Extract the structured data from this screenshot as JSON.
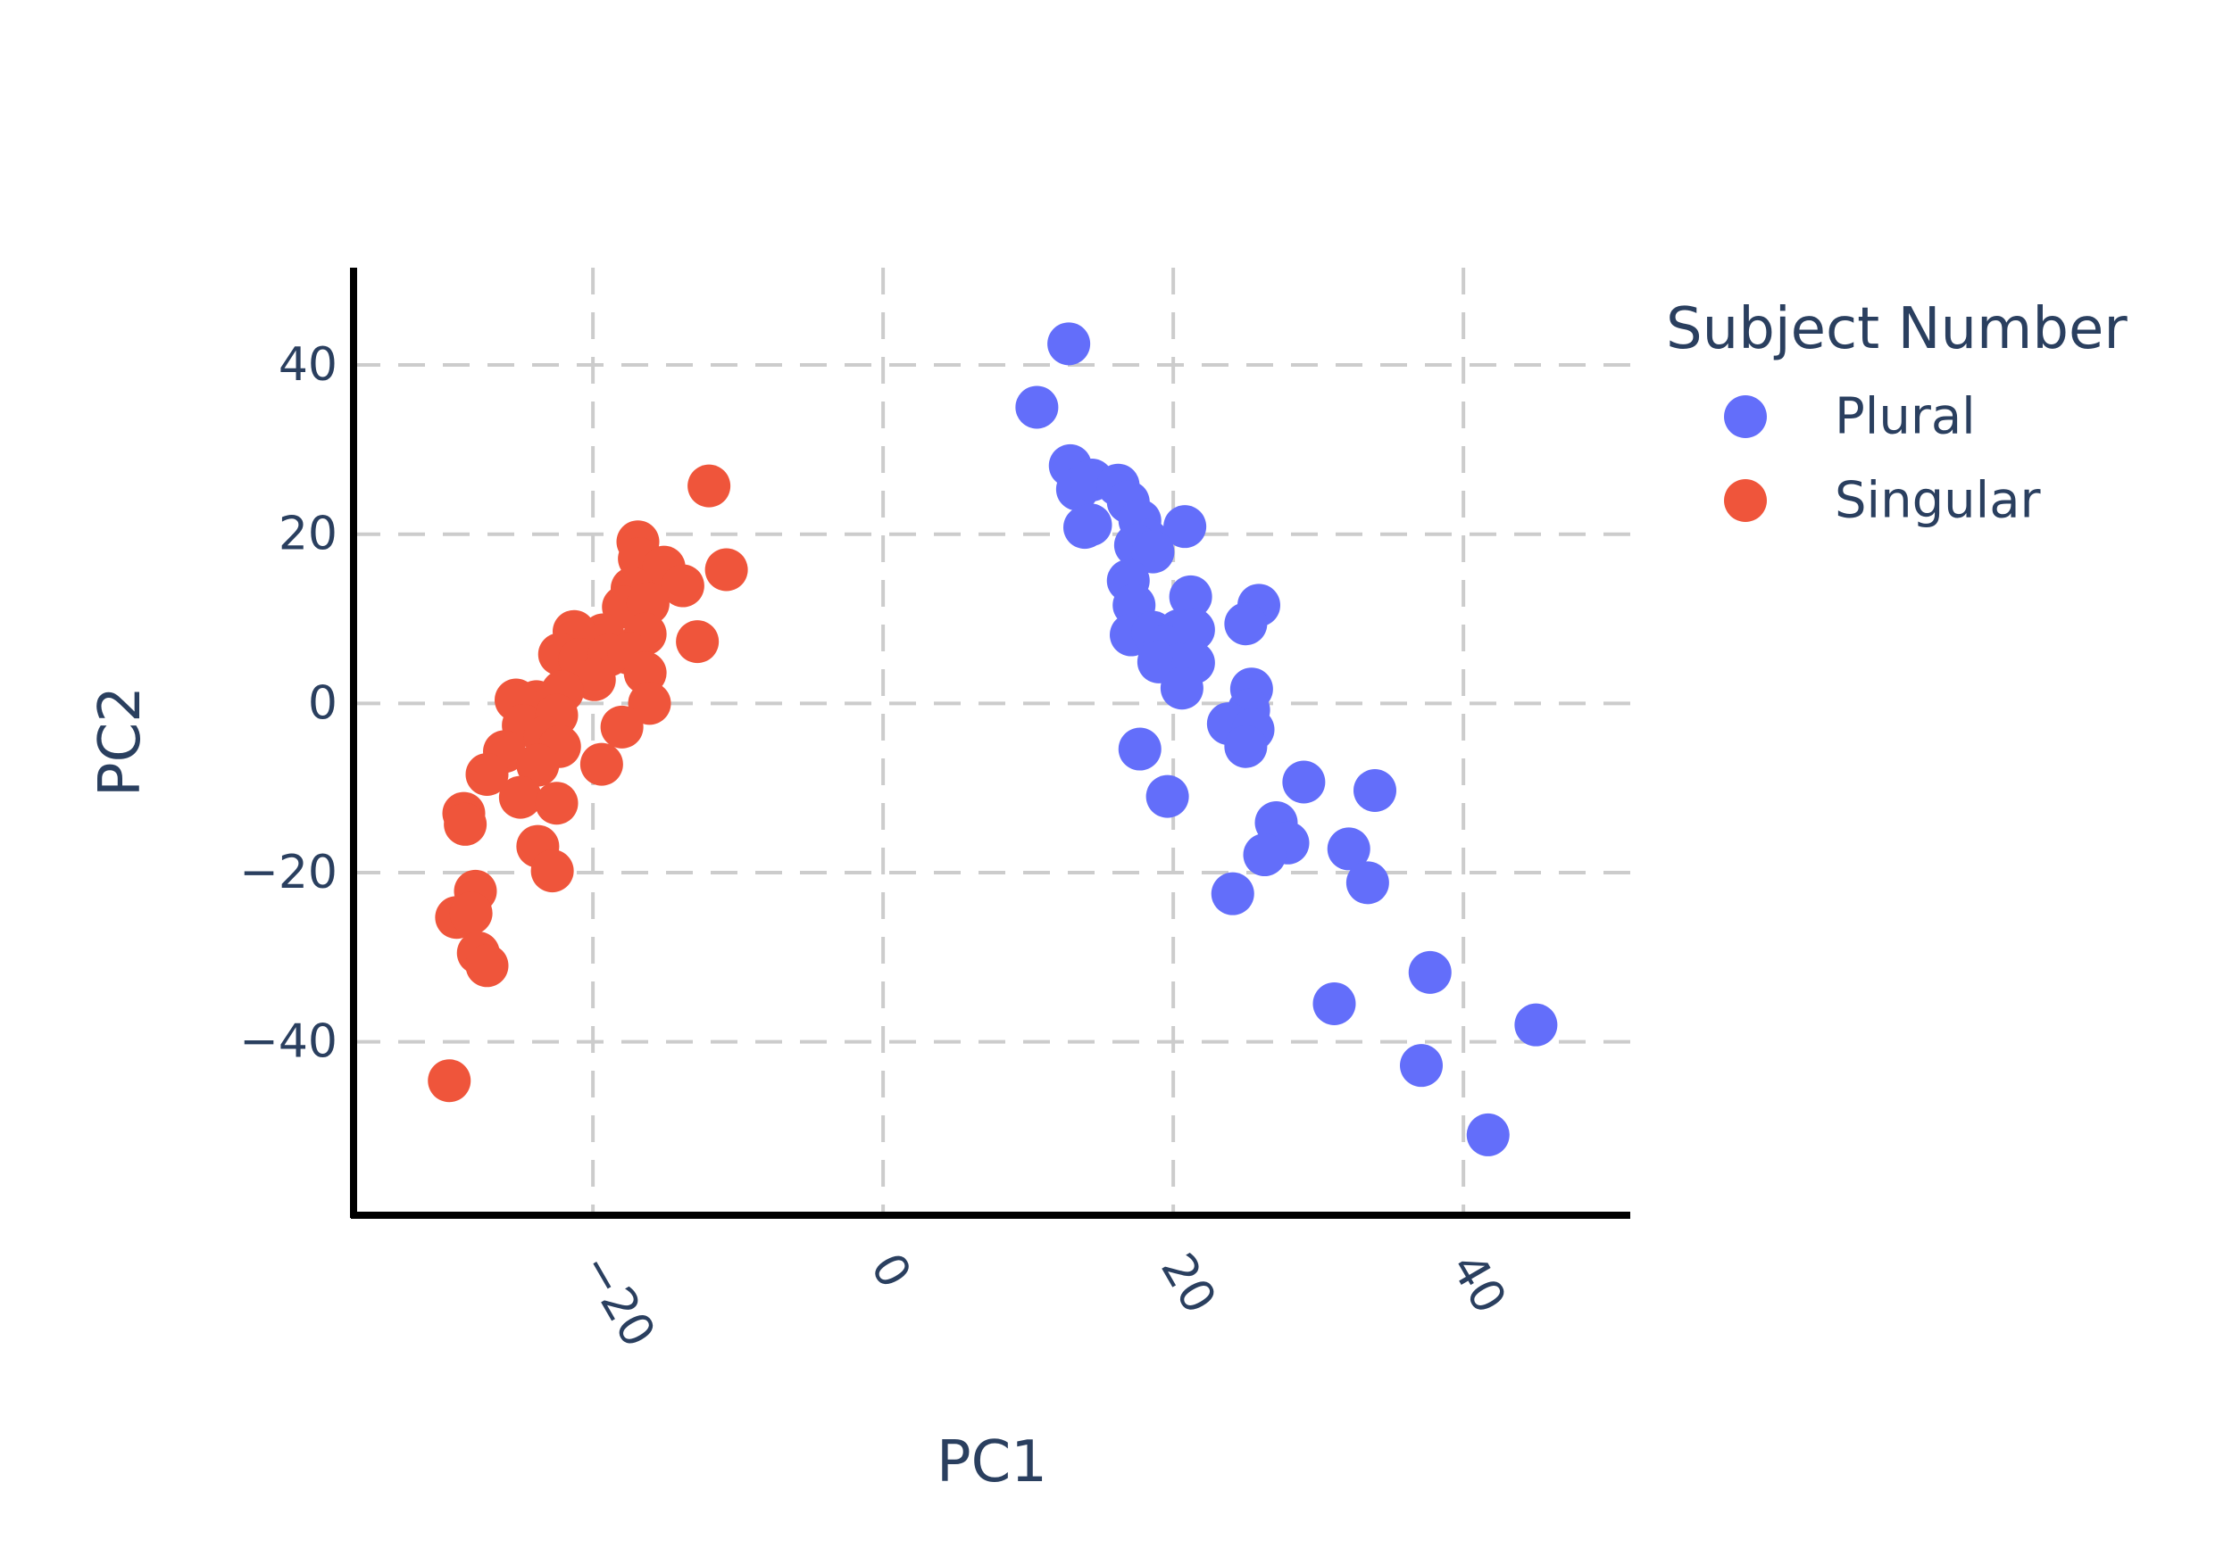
{
  "colors": {
    "plural": "#636efa",
    "singular": "#ef553b",
    "text": "#2a3f5f",
    "grid": "#cccccc",
    "axis": "#000000"
  },
  "chart_data": {
    "type": "scatter",
    "xlabel": "PC1",
    "ylabel": "PC2",
    "xlim": [
      -36.5,
      51.5
    ],
    "ylim": [
      -60.5,
      51.5
    ],
    "xticks": [
      -20,
      0,
      20,
      40
    ],
    "yticks": [
      -40,
      -20,
      0,
      20,
      40
    ],
    "tick_labels_x": [
      "−20",
      "0",
      "20",
      "40"
    ],
    "tick_labels_y": [
      "−40",
      "−20",
      "0",
      "20",
      "40"
    ],
    "grid": true,
    "legend": {
      "title": "Subject Number",
      "position": "top-right"
    },
    "series": [
      {
        "name": "Plural",
        "color": "#636efa",
        "points": [
          [
            12.8,
            42.5
          ],
          [
            10.6,
            35.0
          ],
          [
            12.9,
            28.1
          ],
          [
            13.4,
            25.3
          ],
          [
            14.4,
            26.4
          ],
          [
            16.2,
            25.8
          ],
          [
            16.9,
            23.8
          ],
          [
            13.9,
            20.8
          ],
          [
            14.3,
            21.1
          ],
          [
            17.7,
            21.6
          ],
          [
            18.2,
            19.3
          ],
          [
            20.8,
            20.9
          ],
          [
            17.4,
            18.7
          ],
          [
            18.6,
            17.9
          ],
          [
            16.9,
            14.5
          ],
          [
            21.2,
            12.6
          ],
          [
            25.9,
            11.6
          ],
          [
            25.0,
            9.4
          ],
          [
            17.3,
            11.6
          ],
          [
            17.1,
            8.1
          ],
          [
            18.6,
            8.4
          ],
          [
            20.4,
            8.6
          ],
          [
            21.4,
            8.7
          ],
          [
            19.4,
            6.7
          ],
          [
            19.0,
            4.9
          ],
          [
            20.4,
            4.6
          ],
          [
            21.4,
            4.8
          ],
          [
            20.6,
            1.8
          ],
          [
            25.4,
            1.7
          ],
          [
            25.2,
            -0.8
          ],
          [
            23.8,
            -2.4
          ],
          [
            25.5,
            -3.1
          ],
          [
            25.0,
            -5.1
          ],
          [
            17.7,
            -5.4
          ],
          [
            19.6,
            -11.0
          ],
          [
            29.0,
            -9.3
          ],
          [
            33.9,
            -10.3
          ],
          [
            27.1,
            -14.1
          ],
          [
            27.9,
            -16.5
          ],
          [
            26.3,
            -17.9
          ],
          [
            32.1,
            -17.2
          ],
          [
            33.4,
            -21.2
          ],
          [
            24.1,
            -22.5
          ],
          [
            37.7,
            -31.8
          ],
          [
            31.1,
            -35.5
          ],
          [
            37.1,
            -42.8
          ],
          [
            45.0,
            -38.0
          ],
          [
            41.7,
            -51.0
          ]
        ]
      },
      {
        "name": "Singular",
        "color": "#ef553b",
        "points": [
          [
            -12.0,
            25.7
          ],
          [
            -10.8,
            15.8
          ],
          [
            -16.9,
            19.1
          ],
          [
            -16.8,
            17.1
          ],
          [
            -15.1,
            16.1
          ],
          [
            -13.8,
            13.9
          ],
          [
            -17.3,
            13.6
          ],
          [
            -17.9,
            11.4
          ],
          [
            -16.2,
            11.8
          ],
          [
            -16.4,
            8.2
          ],
          [
            -19.3,
            8.1
          ],
          [
            -21.3,
            8.5
          ],
          [
            -12.8,
            7.3
          ],
          [
            -22.3,
            5.8
          ],
          [
            -20.9,
            5.2
          ],
          [
            -18.9,
            5.7
          ],
          [
            -17.5,
            5.9
          ],
          [
            -16.4,
            3.6
          ],
          [
            -19.9,
            2.8
          ],
          [
            -22.1,
            1.4
          ],
          [
            -16.1,
            0.0
          ],
          [
            -23.9,
            0.2
          ],
          [
            -25.3,
            0.4
          ],
          [
            -24.8,
            -2.6
          ],
          [
            -22.5,
            -1.4
          ],
          [
            -18.0,
            -2.8
          ],
          [
            -23.3,
            -4.0
          ],
          [
            -22.3,
            -5.1
          ],
          [
            -26.1,
            -5.7
          ],
          [
            -23.8,
            -7.3
          ],
          [
            -19.4,
            -7.2
          ],
          [
            -27.3,
            -8.4
          ],
          [
            -25.0,
            -11.1
          ],
          [
            -22.5,
            -11.8
          ],
          [
            -28.9,
            -13.0
          ],
          [
            -28.8,
            -14.3
          ],
          [
            -23.8,
            -16.9
          ],
          [
            -22.8,
            -19.8
          ],
          [
            -28.1,
            -22.2
          ],
          [
            -29.4,
            -25.3
          ],
          [
            -28.4,
            -24.8
          ],
          [
            -27.9,
            -29.5
          ],
          [
            -27.3,
            -31.0
          ],
          [
            -29.9,
            -44.6
          ]
        ]
      }
    ]
  }
}
